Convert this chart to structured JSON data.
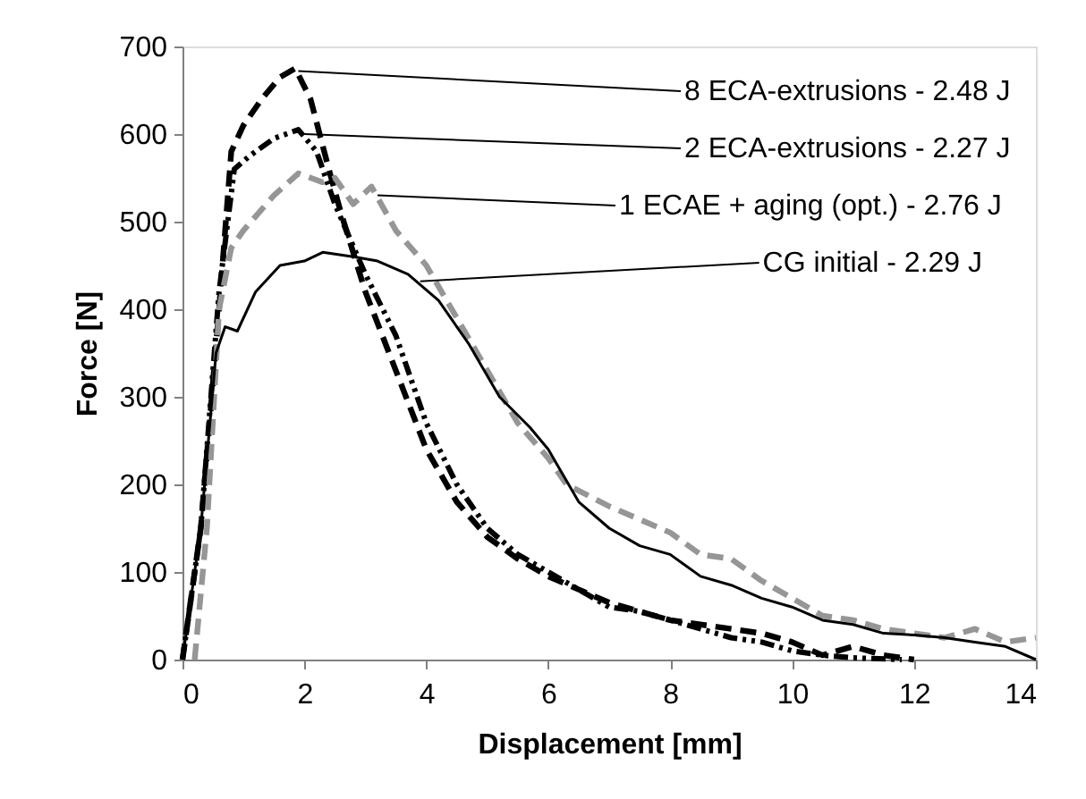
{
  "chart_data": {
    "type": "line",
    "xlabel": "Displacement [mm]",
    "ylabel": "Force [N]",
    "xlim": [
      0,
      14
    ],
    "xticks": [
      0,
      2,
      4,
      6,
      8,
      10,
      12,
      14
    ],
    "ylim": [
      0,
      700
    ],
    "yticks": [
      0,
      100,
      200,
      300,
      400,
      500,
      600,
      700
    ],
    "grid": false,
    "legend": false,
    "marker": "none",
    "annotations": [
      {
        "text": "8 ECA-extrusions - 2.48 J",
        "x": 1.9,
        "y": 672
      },
      {
        "text": "2 ECA-extrusions - 2.27 J",
        "x": 2.0,
        "y": 600
      },
      {
        "text": "1 ECAE + aging (opt.) - 2.76 J",
        "x": 3.2,
        "y": 530
      },
      {
        "text": "CG initial - 2.29 J",
        "x": 3.9,
        "y": 432
      }
    ],
    "series": [
      {
        "color": "#000000",
        "line_style": "dashed",
        "x": [
          0,
          0.3,
          0.6,
          0.8,
          1.0,
          1.3,
          1.6,
          1.85,
          2.1,
          2.4,
          2.6,
          3.0,
          3.5,
          4.0,
          4.5,
          5,
          5.5,
          6,
          6.5,
          7,
          7.5,
          8,
          9,
          9.5,
          10,
          10.5,
          11,
          11.5,
          12
        ],
        "values": [
          0,
          150,
          400,
          580,
          610,
          640,
          665,
          675,
          640,
          560,
          510,
          420,
          330,
          240,
          180,
          140,
          115,
          95,
          80,
          65,
          55,
          45,
          35,
          30,
          20,
          5,
          15,
          5,
          0
        ]
      },
      {
        "color": "#000000",
        "line_style": "dotted",
        "x": [
          0,
          0.3,
          0.6,
          0.85,
          1.1,
          1.5,
          1.9,
          2.2,
          2.5,
          3,
          3.5,
          4,
          4.5,
          5,
          5.5,
          6,
          6.5,
          7,
          7.5,
          8,
          8.5,
          9,
          9.5,
          10,
          10.5,
          11,
          11.8
        ],
        "values": [
          0,
          150,
          420,
          560,
          575,
          595,
          605,
          580,
          520,
          440,
          370,
          270,
          200,
          150,
          120,
          100,
          80,
          60,
          55,
          45,
          35,
          25,
          20,
          10,
          5,
          2,
          0
        ]
      },
      {
        "color": "#969696",
        "line_style": "dashed",
        "x": [
          0.2,
          0.4,
          0.6,
          0.8,
          1,
          1.5,
          1.9,
          2.3,
          2.5,
          2.8,
          3.1,
          3.5,
          4,
          4.5,
          5,
          5.5,
          6,
          6.3,
          7,
          7.5,
          8,
          8.5,
          9,
          9.5,
          10,
          10.5,
          11,
          11.5,
          12,
          12.5,
          13,
          13.5,
          14
        ],
        "values": [
          0,
          150,
          400,
          470,
          490,
          530,
          555,
          545,
          550,
          520,
          540,
          490,
          450,
          390,
          330,
          270,
          230,
          200,
          175,
          160,
          145,
          120,
          115,
          90,
          70,
          50,
          45,
          35,
          30,
          25,
          35,
          20,
          25
        ]
      },
      {
        "color": "#000000",
        "line_style": "solid",
        "x": [
          0,
          0.3,
          0.55,
          0.7,
          0.9,
          1.2,
          1.6,
          2.0,
          2.3,
          2.8,
          3.2,
          3.7,
          4.2,
          4.7,
          5.2,
          5.7,
          6,
          6.5,
          7,
          7.5,
          8,
          8.5,
          9,
          9.5,
          10,
          10.5,
          11,
          11.5,
          12,
          12.5,
          13,
          13.5,
          14
        ],
        "values": [
          0,
          150,
          350,
          380,
          375,
          420,
          450,
          455,
          465,
          460,
          455,
          440,
          410,
          360,
          300,
          265,
          240,
          180,
          150,
          130,
          120,
          95,
          85,
          70,
          60,
          45,
          40,
          30,
          28,
          25,
          20,
          15,
          0
        ]
      }
    ]
  }
}
